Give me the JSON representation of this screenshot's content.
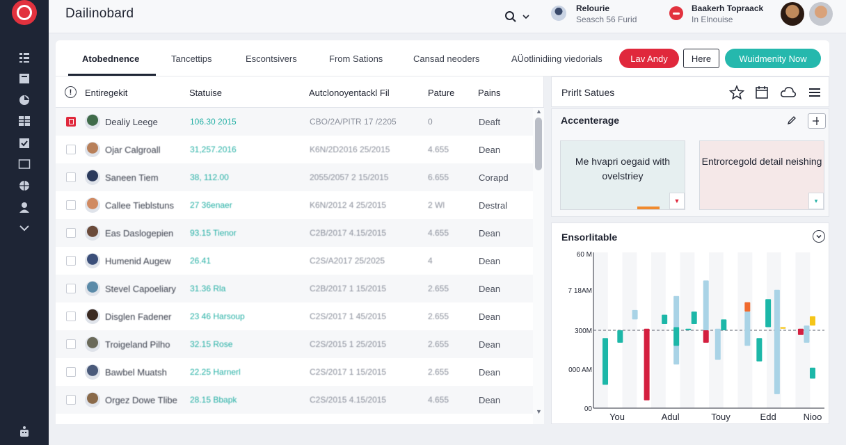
{
  "app": {
    "title": "Dailinobard"
  },
  "header": {
    "user1_name": "Relourie",
    "user1_sub": "Seasch 56 Furid",
    "user2_name": "Baakerh Topraack",
    "user2_sub": "In Elnouise"
  },
  "tabs": [
    {
      "label": "Atobednence",
      "active": true
    },
    {
      "label": "Tancettips"
    },
    {
      "label": "Escontsivers"
    },
    {
      "label": "From Sations"
    },
    {
      "label": "Cansad neoders"
    },
    {
      "label": "AÜotlinidiing viedorials"
    }
  ],
  "actions": {
    "primary": "Lav Andy",
    "secondary": "Here",
    "accent": "Wuidmenity Now"
  },
  "table": {
    "columns": [
      "Entiregekit",
      "Statuise",
      "Autclonoyentackl Fil",
      "Pature",
      "Pains"
    ],
    "rows": [
      {
        "name": "Dealiy Leege",
        "status": "106.30 2015",
        "auto": "CBO/2A/PITR 17 /2205",
        "pature": "0",
        "pairs": "Deaft",
        "checked": true
      },
      {
        "name": "Ojar Calgroall",
        "status": "31,257.2016",
        "auto": "K6N/2D2016 25/2015",
        "pature": "4.655",
        "pairs": "Dean"
      },
      {
        "name": "Saneen Tiem",
        "status": "38, 112.00",
        "auto": "2055/2057 2 15/2015",
        "pature": "6.655",
        "pairs": "Corapd"
      },
      {
        "name": "Callee Tieblstuns",
        "status": "27 36enaer",
        "auto": "K6N/2012 4 25/2015",
        "pature": "2 Wl",
        "pairs": "Destral"
      },
      {
        "name": "Eas Daslogepien",
        "status": "93.15 Tienor",
        "auto": "C2B/2017 4.15/2015",
        "pature": "4.655",
        "pairs": "Dean"
      },
      {
        "name": "Humenid Augew",
        "status": "26.41",
        "auto": "C2S/A2017 25/2025",
        "pature": "4",
        "pairs": "Dean"
      },
      {
        "name": "Stevel Capoeliary",
        "status": "31.36 Rla",
        "auto": "C2B/2017 1 15/2015",
        "pature": "2.655",
        "pairs": "Dean"
      },
      {
        "name": "Disglen Fadener",
        "status": "23 46 Harsoup",
        "auto": "C2S/2017 1 45/2015",
        "pature": "2.655",
        "pairs": "Dean"
      },
      {
        "name": "Troigeland Pilho",
        "status": "32.15 Rose",
        "auto": "C2S/2015 1 25/2015",
        "pature": "2.655",
        "pairs": "Dean"
      },
      {
        "name": "Bawbel Muatsh",
        "status": "22.25 Harnerl",
        "auto": "C2S/2017 1 15/2015",
        "pature": "2.655",
        "pairs": "Dean"
      },
      {
        "name": "Orgez Dowe Tlibe",
        "status": "28.15 Bbapk",
        "auto": "C2S/2015 4.15/2015",
        "pature": "4.655",
        "pairs": "Dean"
      }
    ]
  },
  "panels": {
    "print_status": {
      "title": "Prirlt Satues"
    },
    "accenterage": {
      "title": "Accenterage",
      "card1": "Me hvapri oegaid with ovelstriey",
      "card2": "Entrorcegold detail neishing"
    },
    "ensorlitable": {
      "title": "Ensorlitable"
    }
  },
  "chart_data": {
    "type": "bar",
    "title": "Ensorlitable",
    "y_tick_labels": [
      "60 M",
      "7 18AM",
      "300M",
      "000 AM",
      "00"
    ],
    "x_tick_labels": [
      "You",
      "Adul",
      "Touy",
      "Edd",
      "Nioo"
    ],
    "reference_line": "300M",
    "series_colors": [
      "#1cb7a8",
      "#a9d3e6",
      "#d41f3f",
      "#f06a2e",
      "#f5c518"
    ],
    "bars": [
      {
        "x": 1.0,
        "low": 0.15,
        "high": 0.45,
        "color": "#1cb7a8"
      },
      {
        "x": 1.5,
        "low": 0.42,
        "high": 0.5,
        "color": "#1cb7a8"
      },
      {
        "x": 2.0,
        "low": 0.57,
        "high": 0.63,
        "color": "#a9d3e6"
      },
      {
        "x": 2.4,
        "low": 0.05,
        "high": 0.51,
        "color": "#d41f3f"
      },
      {
        "x": 3.0,
        "low": 0.54,
        "high": 0.6,
        "color": "#1cb7a8"
      },
      {
        "x": 3.4,
        "low": 0.28,
        "high": 0.72,
        "color": "#a9d3e6"
      },
      {
        "x": 3.4,
        "low": 0.4,
        "high": 0.52,
        "color": "#1cb7a8"
      },
      {
        "x": 3.8,
        "low": 0.5,
        "high": 0.51,
        "color": "#1cb7a8"
      },
      {
        "x": 4.0,
        "low": 0.54,
        "high": 0.62,
        "color": "#1cb7a8"
      },
      {
        "x": 4.4,
        "low": 0.42,
        "high": 0.5,
        "color": "#d41f3f"
      },
      {
        "x": 4.4,
        "low": 0.5,
        "high": 0.82,
        "color": "#a9d3e6"
      },
      {
        "x": 4.8,
        "low": 0.31,
        "high": 0.51,
        "color": "#a9d3e6"
      },
      {
        "x": 5.0,
        "low": 0.5,
        "high": 0.57,
        "color": "#1cb7a8"
      },
      {
        "x": 5.8,
        "low": 0.4,
        "high": 0.62,
        "color": "#a9d3e6"
      },
      {
        "x": 5.8,
        "low": 0.62,
        "high": 0.68,
        "color": "#f06a2e"
      },
      {
        "x": 6.2,
        "low": 0.3,
        "high": 0.45,
        "color": "#1cb7a8"
      },
      {
        "x": 6.5,
        "low": 0.52,
        "high": 0.7,
        "color": "#1cb7a8"
      },
      {
        "x": 6.8,
        "low": 0.09,
        "high": 0.76,
        "color": "#a9d3e6"
      },
      {
        "x": 7.0,
        "low": 0.51,
        "high": 0.52,
        "color": "#f5c518"
      },
      {
        "x": 7.6,
        "low": 0.47,
        "high": 0.51,
        "color": "#d41f3f"
      },
      {
        "x": 7.8,
        "low": 0.42,
        "high": 0.53,
        "color": "#a9d3e6"
      },
      {
        "x": 8.0,
        "low": 0.53,
        "high": 0.59,
        "color": "#f5c518"
      },
      {
        "x": 8.0,
        "low": 0.19,
        "high": 0.26,
        "color": "#1cb7a8"
      }
    ]
  }
}
